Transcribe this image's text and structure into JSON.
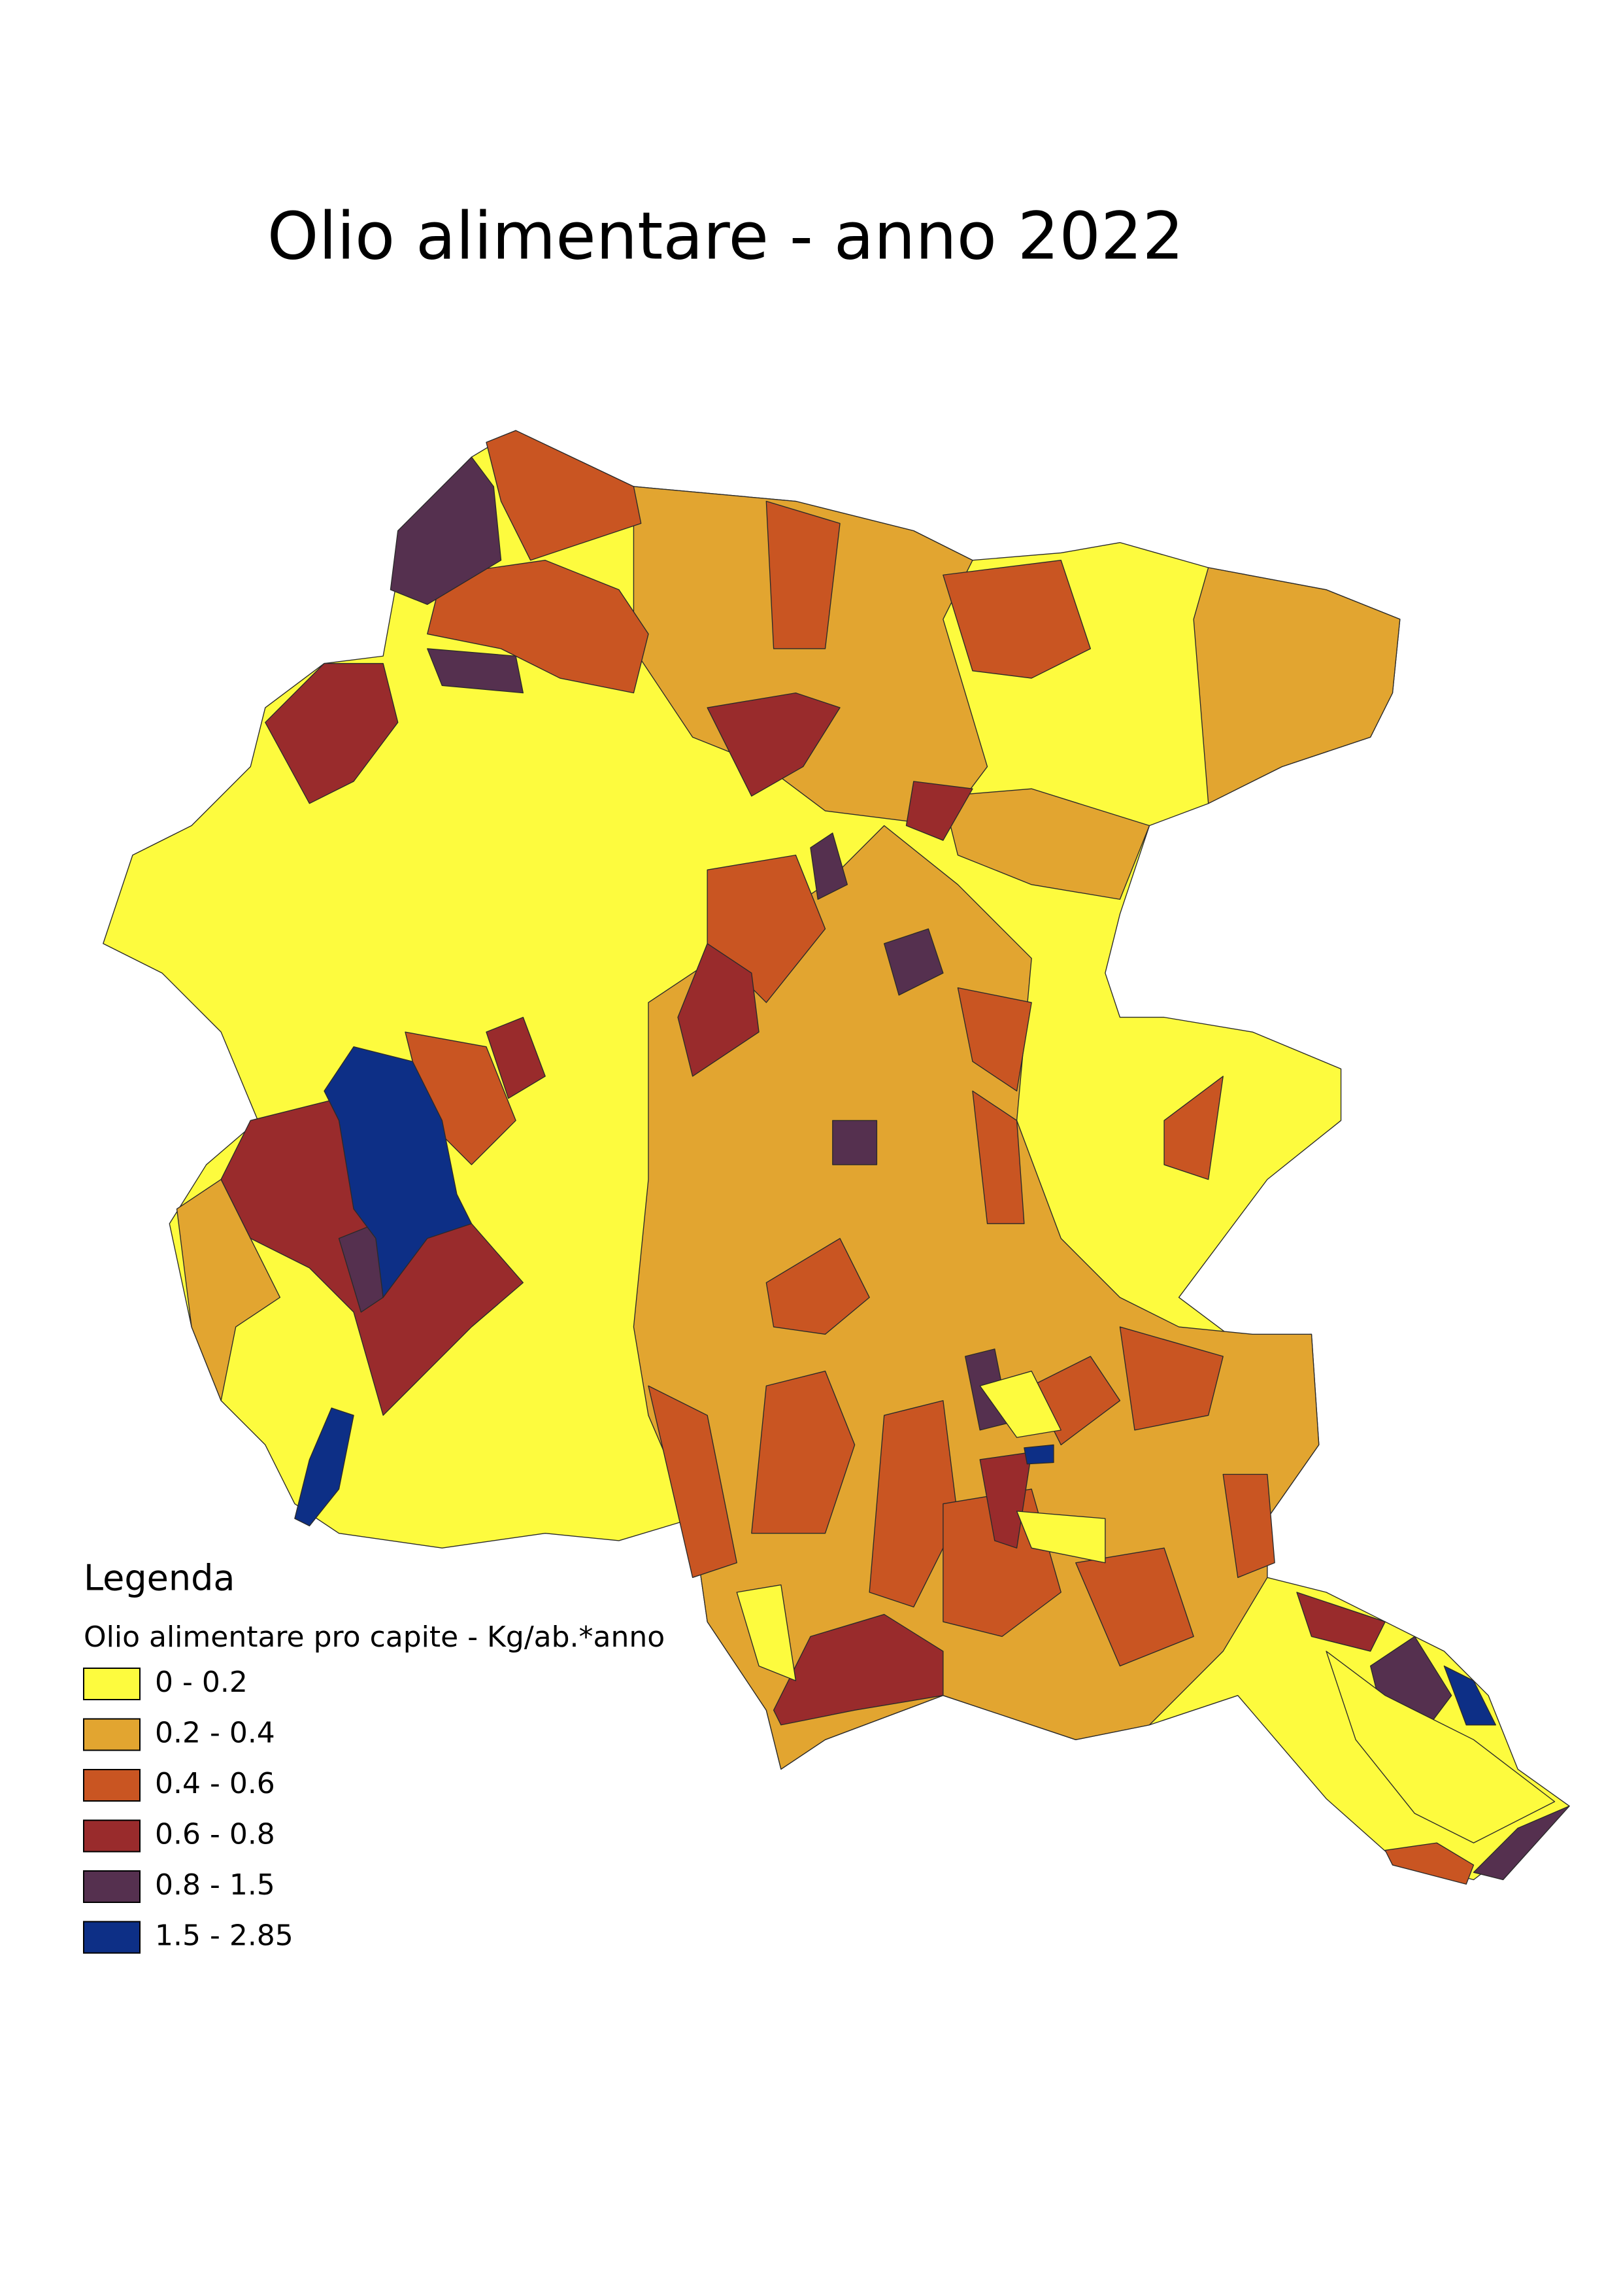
{
  "title": "Olio alimentare - anno 2022",
  "legend": {
    "title": "Legenda",
    "subtitle": "Olio alimentare pro capite - Kg/ab.*anno",
    "classes": [
      {
        "label": "0 - 0.2",
        "color": "#fdfb3e"
      },
      {
        "label": "0.2 - 0.4",
        "color": "#e2a530"
      },
      {
        "label": "0.4 - 0.6",
        "color": "#c95522"
      },
      {
        "label": "0.6 - 0.8",
        "color": "#992b2c"
      },
      {
        "label": "0.8 - 1.5",
        "color": "#55304f"
      },
      {
        "label": "1.5 - 2.85",
        "color": "#0d2f86"
      }
    ]
  }
}
